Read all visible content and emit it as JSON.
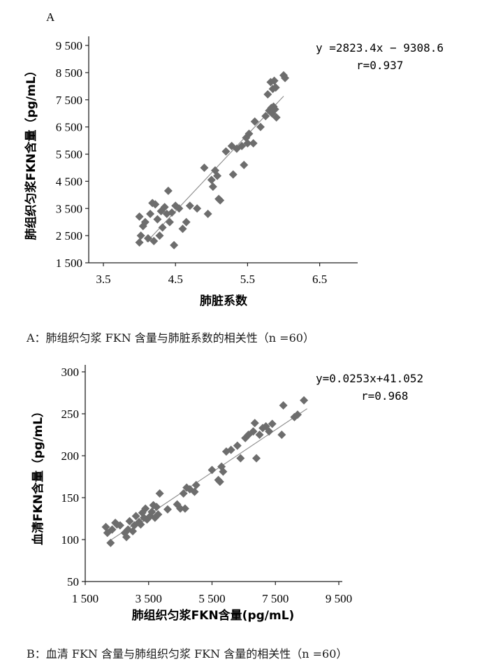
{
  "chart_data": [
    {
      "type": "scatter",
      "panel_label": "A",
      "xlabel": "肺脏系数",
      "ylabel": "肺组织匀浆FKN含量（pg/mL）",
      "xlim": [
        3,
        7.2
      ],
      "ylim": [
        1500,
        9800
      ],
      "xticks": [
        3.5,
        4.5,
        5.5,
        6.5
      ],
      "xtick_labels": [
        "3.5",
        "4.5",
        "5.5",
        "6.5"
      ],
      "yticks": [
        1500,
        2500,
        3500,
        4500,
        5500,
        6500,
        7500,
        8500,
        9500
      ],
      "ytick_labels": [
        "1 500",
        "2 500",
        "3 500",
        "4 500",
        "5 500",
        "6 500",
        "7 500",
        "8 500",
        "9 500"
      ],
      "equation": "y =2823.4x − 9308.6",
      "r_text": "r=0.937",
      "fit_line": {
        "slope": 2823.4,
        "intercept": -9308.6,
        "x_range": [
          4.1,
          6.0
        ]
      },
      "caption": "A：肺组织匀浆 FKN 含量与肺脏系数的相关性（n =60）",
      "points": [
        [
          4.0,
          2250
        ],
        [
          4.02,
          2500
        ],
        [
          4.05,
          2850
        ],
        [
          4.0,
          3200
        ],
        [
          4.08,
          3000
        ],
        [
          4.12,
          2400
        ],
        [
          4.15,
          3300
        ],
        [
          4.18,
          3700
        ],
        [
          4.2,
          2300
        ],
        [
          4.22,
          3650
        ],
        [
          4.25,
          3100
        ],
        [
          4.28,
          2500
        ],
        [
          4.3,
          3400
        ],
        [
          4.32,
          2800
        ],
        [
          4.35,
          3550
        ],
        [
          4.38,
          3300
        ],
        [
          4.4,
          4150
        ],
        [
          4.42,
          3000
        ],
        [
          4.45,
          3350
        ],
        [
          4.48,
          2150
        ],
        [
          4.5,
          3600
        ],
        [
          4.55,
          3500
        ],
        [
          4.6,
          2750
        ],
        [
          4.65,
          3000
        ],
        [
          4.7,
          3600
        ],
        [
          4.8,
          3500
        ],
        [
          4.9,
          5000
        ],
        [
          4.95,
          3300
        ],
        [
          5.0,
          4550
        ],
        [
          5.02,
          4300
        ],
        [
          5.05,
          4900
        ],
        [
          5.08,
          4700
        ],
        [
          5.1,
          3850
        ],
        [
          5.12,
          3800
        ],
        [
          5.2,
          5600
        ],
        [
          5.28,
          5800
        ],
        [
          5.3,
          4750
        ],
        [
          5.35,
          5700
        ],
        [
          5.42,
          5800
        ],
        [
          5.45,
          5100
        ],
        [
          5.48,
          6100
        ],
        [
          5.5,
          5900
        ],
        [
          5.52,
          6250
        ],
        [
          5.58,
          5900
        ],
        [
          5.6,
          6700
        ],
        [
          5.68,
          6500
        ],
        [
          5.75,
          6900
        ],
        [
          5.78,
          7700
        ],
        [
          5.8,
          7100
        ],
        [
          5.82,
          8150
        ],
        [
          5.83,
          7200
        ],
        [
          5.84,
          7000
        ],
        [
          5.85,
          7900
        ],
        [
          5.86,
          7250
        ],
        [
          5.87,
          8200
        ],
        [
          5.88,
          7150
        ],
        [
          5.89,
          7950
        ],
        [
          5.9,
          6850
        ],
        [
          6.0,
          8400
        ],
        [
          6.02,
          8300
        ]
      ]
    },
    {
      "type": "scatter",
      "xlabel": "肺组织匀浆FKN含量(pg/mL)",
      "ylabel": "血清FKN含量（pg/mL）",
      "xlim": [
        1500,
        9600
      ],
      "ylim": [
        50,
        300
      ],
      "xticks": [
        1500,
        3500,
        5500,
        7500,
        9500
      ],
      "xtick_labels": [
        "1 500",
        "3 500",
        "5 500",
        "7 500",
        "9 500"
      ],
      "yticks": [
        50,
        100,
        150,
        200,
        250,
        300
      ],
      "ytick_labels": [
        "50",
        "100",
        "150",
        "200",
        "250",
        "300"
      ],
      "equation": "y=0.0253x+41.052",
      "r_text": "r=0.968",
      "fit_line": {
        "slope": 0.0253,
        "intercept": 41.052,
        "x_range": [
          2200,
          8500
        ]
      },
      "caption": "B：血清 FKN 含量与肺组织匀浆 FKN 含量的相关性（n =60）",
      "points": [
        [
          2150,
          115
        ],
        [
          2200,
          108
        ],
        [
          2300,
          96
        ],
        [
          2350,
          112
        ],
        [
          2450,
          120
        ],
        [
          2500,
          118
        ],
        [
          2600,
          117
        ],
        [
          2750,
          108
        ],
        [
          2800,
          103
        ],
        [
          2850,
          112
        ],
        [
          2900,
          122
        ],
        [
          3000,
          110
        ],
        [
          3050,
          117
        ],
        [
          3100,
          128
        ],
        [
          3200,
          121
        ],
        [
          3250,
          118
        ],
        [
          3300,
          132
        ],
        [
          3350,
          126
        ],
        [
          3400,
          137
        ],
        [
          3450,
          124
        ],
        [
          3550,
          128
        ],
        [
          3600,
          133
        ],
        [
          3650,
          141
        ],
        [
          3700,
          126
        ],
        [
          3750,
          139
        ],
        [
          3800,
          130
        ],
        [
          3850,
          155
        ],
        [
          4100,
          136
        ],
        [
          4400,
          142
        ],
        [
          4500,
          137
        ],
        [
          4600,
          155
        ],
        [
          4650,
          137
        ],
        [
          4700,
          162
        ],
        [
          4800,
          160
        ],
        [
          4950,
          157
        ],
        [
          5000,
          165
        ],
        [
          5500,
          183
        ],
        [
          5700,
          171
        ],
        [
          5750,
          169
        ],
        [
          5800,
          187
        ],
        [
          5850,
          181
        ],
        [
          5950,
          205
        ],
        [
          6100,
          207
        ],
        [
          6300,
          212
        ],
        [
          6400,
          197
        ],
        [
          6550,
          221
        ],
        [
          6650,
          225
        ],
        [
          6800,
          229
        ],
        [
          6850,
          239
        ],
        [
          6900,
          197
        ],
        [
          7000,
          225
        ],
        [
          7100,
          233
        ],
        [
          7200,
          235
        ],
        [
          7300,
          229
        ],
        [
          7400,
          238
        ],
        [
          7700,
          225
        ],
        [
          7750,
          260
        ],
        [
          8100,
          246
        ],
        [
          8200,
          249
        ],
        [
          8400,
          266
        ]
      ]
    }
  ]
}
